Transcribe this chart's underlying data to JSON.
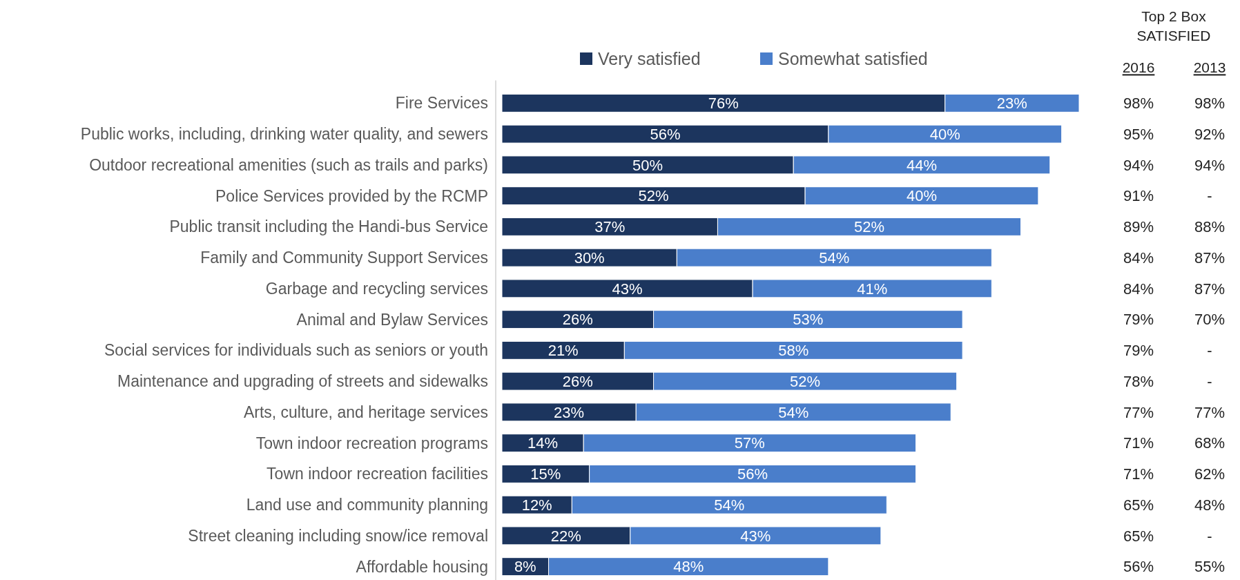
{
  "chart_data": {
    "type": "bar",
    "orientation": "horizontal",
    "stacked": true,
    "legend": "top",
    "categories": [
      "Fire Services",
      "Public works, including, drinking water quality, and sewers",
      "Outdoor recreational amenities (such as trails and parks)",
      "Police Services provided by the RCMP",
      "Public transit including the Handi-bus Service",
      "Family and Community Support Services",
      "Garbage and recycling services",
      "Animal and Bylaw Services",
      "Social services for individuals such as seniors or youth",
      "Maintenance and upgrading of streets and sidewalks",
      "Arts, culture, and heritage services",
      "Town indoor recreation programs",
      "Town indoor recreation facilities",
      "Land use and community planning",
      "Street cleaning including snow/ice removal",
      "Affordable housing"
    ],
    "series": [
      {
        "name": "Very satisfied",
        "color": "#1c355e",
        "values": [
          76,
          56,
          50,
          52,
          37,
          30,
          43,
          26,
          21,
          26,
          23,
          14,
          15,
          12,
          22,
          8
        ],
        "value_labels": [
          "76%",
          "56%",
          "50%",
          "52%",
          "37%",
          "30%",
          "43%",
          "26%",
          "21%",
          "26%",
          "23%",
          "14%",
          "15%",
          "12%",
          "22%",
          "8%"
        ]
      },
      {
        "name": "Somewhat satisfied",
        "color": "#4a7ecb",
        "values": [
          23,
          40,
          44,
          40,
          52,
          54,
          41,
          53,
          58,
          52,
          54,
          57,
          56,
          54,
          43,
          48
        ],
        "value_labels": [
          "23%",
          "40%",
          "44%",
          "40%",
          "52%",
          "54%",
          "41%",
          "53%",
          "58%",
          "52%",
          "54%",
          "57%",
          "56%",
          "54%",
          "43%",
          "48%"
        ]
      }
    ],
    "annotations": [
      "Top 2 Box",
      "SATISFIED",
      "2016",
      "2013",
      "98%",
      "95%",
      "94%",
      "91%",
      "89%",
      "84%",
      "84%",
      "79%",
      "79%",
      "78%",
      "77%",
      "71%",
      "71%",
      "65%",
      "65%",
      "56%",
      "98%",
      "92%",
      "94%",
      "-",
      "88%",
      "87%",
      "87%",
      "70%",
      "-",
      "-",
      "77%",
      "68%",
      "62%",
      "48%",
      "-",
      "55%"
    ]
  }
}
